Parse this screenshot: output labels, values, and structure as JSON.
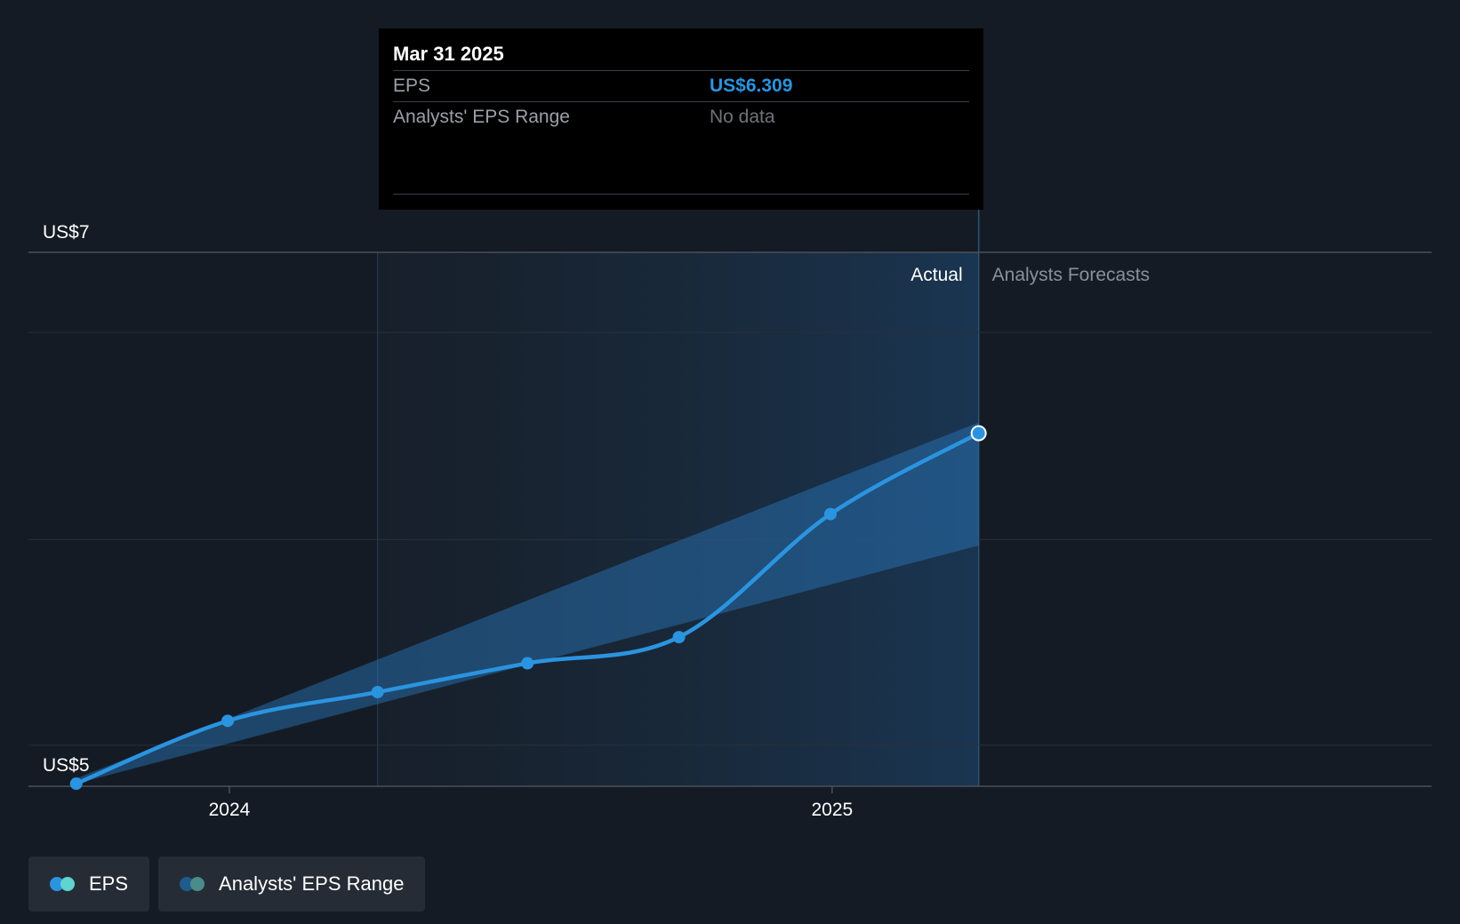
{
  "tooltip": {
    "date": "Mar 31 2025",
    "rows": [
      {
        "label": "EPS",
        "value": "US$6.309"
      },
      {
        "label": "Analysts' EPS Range",
        "value": "No data"
      }
    ]
  },
  "regions": {
    "actual_label": "Actual",
    "forecast_label": "Analysts Forecasts"
  },
  "legend": [
    {
      "label": "EPS",
      "colors": [
        "#2b94e0",
        "#5fd4d0"
      ]
    },
    {
      "label": "Analysts' EPS Range",
      "colors": [
        "#1f5b8c",
        "#4a8c8c"
      ]
    }
  ],
  "colors": {
    "eps_line": "#2b94e0",
    "range_fill": "#2b7ac0",
    "background": "#151b24"
  },
  "chart_data": {
    "type": "line",
    "y_tick_labels": [
      "US$5",
      "US$7"
    ],
    "ylim": [
      4.96,
      7.0
    ],
    "x_tick_labels": [
      "2024",
      "2025"
    ],
    "x_ticks": [
      "2024-01-01",
      "2025-01-01"
    ],
    "xlim": [
      "2023-09-01",
      "2025-12-31"
    ],
    "series": [
      {
        "name": "EPS",
        "points": [
          {
            "date": "2023-09-30",
            "value": 4.97
          },
          {
            "date": "2023-12-31",
            "value": 5.21
          },
          {
            "date": "2024-03-31",
            "value": 5.32
          },
          {
            "date": "2024-06-30",
            "value": 5.43
          },
          {
            "date": "2024-09-30",
            "value": 5.53
          },
          {
            "date": "2024-12-31",
            "value": 6.0
          },
          {
            "date": "2025-03-31",
            "value": 6.309
          }
        ]
      }
    ],
    "range_band": {
      "dates": [
        "2023-09-30",
        "2025-03-31"
      ],
      "upper": [
        4.99,
        6.35
      ],
      "lower": [
        4.97,
        5.88
      ]
    },
    "highlight_start": "2024-03-31",
    "highlight_end": "2025-03-31",
    "grid": true
  }
}
